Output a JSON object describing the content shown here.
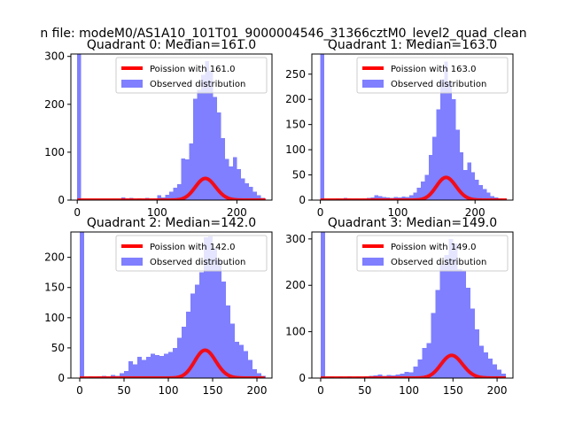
{
  "suptitle": "n file: modeM0/AS1A10_101T01_9000004546_31366cztM0_level2_quad_clean",
  "colors": {
    "hist": "#7f7fff",
    "curve": "#ff0000",
    "axes": "#000000"
  },
  "chart_data": [
    {
      "type": "bar",
      "title": "Quadrant 0: Median=161.0",
      "xlim": [
        -8,
        244
      ],
      "ylim": [
        0,
        305
      ],
      "xticks": [
        0,
        100,
        200
      ],
      "yticks": [
        0,
        100,
        200,
        300
      ],
      "bin_width": 5,
      "bins": [
        {
          "x": 0,
          "count": 305
        },
        {
          "x": 55,
          "count": 6
        },
        {
          "x": 60,
          "count": 3
        },
        {
          "x": 65,
          "count": 5
        },
        {
          "x": 70,
          "count": 2
        },
        {
          "x": 75,
          "count": 4
        },
        {
          "x": 80,
          "count": 2
        },
        {
          "x": 85,
          "count": 5
        },
        {
          "x": 90,
          "count": 2
        },
        {
          "x": 95,
          "count": 3
        },
        {
          "x": 100,
          "count": 10
        },
        {
          "x": 105,
          "count": 6
        },
        {
          "x": 110,
          "count": 11
        },
        {
          "x": 115,
          "count": 18
        },
        {
          "x": 120,
          "count": 26
        },
        {
          "x": 125,
          "count": 33
        },
        {
          "x": 130,
          "count": 87
        },
        {
          "x": 135,
          "count": 85
        },
        {
          "x": 140,
          "count": 118
        },
        {
          "x": 145,
          "count": 212
        },
        {
          "x": 150,
          "count": 230
        },
        {
          "x": 155,
          "count": 262
        },
        {
          "x": 160,
          "count": 290
        },
        {
          "x": 165,
          "count": 270
        },
        {
          "x": 170,
          "count": 215
        },
        {
          "x": 175,
          "count": 183
        },
        {
          "x": 180,
          "count": 129
        },
        {
          "x": 185,
          "count": 86
        },
        {
          "x": 190,
          "count": 70
        },
        {
          "x": 195,
          "count": 90
        },
        {
          "x": 200,
          "count": 65
        },
        {
          "x": 205,
          "count": 45
        },
        {
          "x": 210,
          "count": 35
        },
        {
          "x": 215,
          "count": 28
        },
        {
          "x": 220,
          "count": 18
        },
        {
          "x": 225,
          "count": 10
        },
        {
          "x": 230,
          "count": 5
        }
      ],
      "poisson": {
        "mean": 161.0,
        "scale": 1440
      },
      "legend": {
        "curve": "Poission with 161.0",
        "hist": "Observed distribution"
      }
    },
    {
      "type": "bar",
      "title": "Quadrant 1: Median=163.0",
      "xlim": [
        -11,
        249
      ],
      "ylim": [
        0,
        290
      ],
      "xticks": [
        0,
        100,
        200
      ],
      "yticks": [
        0,
        50,
        100,
        150,
        200,
        250
      ],
      "bin_width": 5,
      "bins": [
        {
          "x": 0,
          "count": 290
        },
        {
          "x": 20,
          "count": 3
        },
        {
          "x": 25,
          "count": 2
        },
        {
          "x": 30,
          "count": 4
        },
        {
          "x": 35,
          "count": 3
        },
        {
          "x": 40,
          "count": 2
        },
        {
          "x": 45,
          "count": 3
        },
        {
          "x": 50,
          "count": 2
        },
        {
          "x": 55,
          "count": 3
        },
        {
          "x": 60,
          "count": 4
        },
        {
          "x": 65,
          "count": 5
        },
        {
          "x": 70,
          "count": 10
        },
        {
          "x": 75,
          "count": 8
        },
        {
          "x": 80,
          "count": 6
        },
        {
          "x": 85,
          "count": 5
        },
        {
          "x": 90,
          "count": 4
        },
        {
          "x": 95,
          "count": 6
        },
        {
          "x": 100,
          "count": 5
        },
        {
          "x": 105,
          "count": 7
        },
        {
          "x": 110,
          "count": 6
        },
        {
          "x": 115,
          "count": 10
        },
        {
          "x": 120,
          "count": 15
        },
        {
          "x": 125,
          "count": 25
        },
        {
          "x": 130,
          "count": 37
        },
        {
          "x": 135,
          "count": 50
        },
        {
          "x": 140,
          "count": 90
        },
        {
          "x": 145,
          "count": 126
        },
        {
          "x": 150,
          "count": 180
        },
        {
          "x": 155,
          "count": 240
        },
        {
          "x": 160,
          "count": 275
        },
        {
          "x": 165,
          "count": 235
        },
        {
          "x": 170,
          "count": 200
        },
        {
          "x": 175,
          "count": 140
        },
        {
          "x": 180,
          "count": 95
        },
        {
          "x": 185,
          "count": 60
        },
        {
          "x": 190,
          "count": 75
        },
        {
          "x": 195,
          "count": 55
        },
        {
          "x": 200,
          "count": 40
        },
        {
          "x": 205,
          "count": 30
        },
        {
          "x": 210,
          "count": 22
        },
        {
          "x": 215,
          "count": 15
        },
        {
          "x": 220,
          "count": 8
        },
        {
          "x": 225,
          "count": 5
        },
        {
          "x": 230,
          "count": 3
        }
      ],
      "poisson": {
        "mean": 163.0,
        "scale": 1440
      },
      "legend": {
        "curve": "Poission with 163.0",
        "hist": "Observed distribution"
      }
    },
    {
      "type": "bar",
      "title": "Quadrant 2: Median=142.0",
      "xlim": [
        -10,
        217
      ],
      "ylim": [
        0,
        242
      ],
      "xticks": [
        0,
        50,
        100,
        150,
        200
      ],
      "yticks": [
        0,
        50,
        100,
        150,
        200
      ],
      "bin_width": 5,
      "bins": [
        {
          "x": 0,
          "count": 242
        },
        {
          "x": 10,
          "count": 3
        },
        {
          "x": 15,
          "count": 2
        },
        {
          "x": 20,
          "count": 3
        },
        {
          "x": 25,
          "count": 4
        },
        {
          "x": 30,
          "count": 3
        },
        {
          "x": 35,
          "count": 5
        },
        {
          "x": 40,
          "count": 4
        },
        {
          "x": 45,
          "count": 8
        },
        {
          "x": 50,
          "count": 12
        },
        {
          "x": 55,
          "count": 28
        },
        {
          "x": 60,
          "count": 23
        },
        {
          "x": 65,
          "count": 35
        },
        {
          "x": 70,
          "count": 30
        },
        {
          "x": 75,
          "count": 35
        },
        {
          "x": 80,
          "count": 40
        },
        {
          "x": 85,
          "count": 38
        },
        {
          "x": 90,
          "count": 37
        },
        {
          "x": 95,
          "count": 40
        },
        {
          "x": 100,
          "count": 43
        },
        {
          "x": 105,
          "count": 50
        },
        {
          "x": 110,
          "count": 67
        },
        {
          "x": 115,
          "count": 85
        },
        {
          "x": 120,
          "count": 110
        },
        {
          "x": 125,
          "count": 140
        },
        {
          "x": 130,
          "count": 155
        },
        {
          "x": 135,
          "count": 175
        },
        {
          "x": 140,
          "count": 233
        },
        {
          "x": 145,
          "count": 235
        },
        {
          "x": 150,
          "count": 215
        },
        {
          "x": 155,
          "count": 195
        },
        {
          "x": 160,
          "count": 160
        },
        {
          "x": 165,
          "count": 120
        },
        {
          "x": 170,
          "count": 90
        },
        {
          "x": 175,
          "count": 60
        },
        {
          "x": 180,
          "count": 55
        },
        {
          "x": 185,
          "count": 45
        },
        {
          "x": 190,
          "count": 30
        },
        {
          "x": 195,
          "count": 15
        },
        {
          "x": 200,
          "count": 8
        },
        {
          "x": 205,
          "count": 4
        }
      ],
      "poisson": {
        "mean": 142.0,
        "scale": 1380
      },
      "legend": {
        "curve": "Poission with 142.0",
        "hist": "Observed distribution"
      }
    },
    {
      "type": "bar",
      "title": "Quadrant 3: Median=149.0",
      "xlim": [
        -10,
        218
      ],
      "ylim": [
        0,
        315
      ],
      "xticks": [
        0,
        50,
        100,
        150,
        200
      ],
      "yticks": [
        0,
        100,
        200,
        300
      ],
      "bin_width": 5,
      "bins": [
        {
          "x": 0,
          "count": 315
        },
        {
          "x": 10,
          "count": 3
        },
        {
          "x": 20,
          "count": 3
        },
        {
          "x": 30,
          "count": 4
        },
        {
          "x": 40,
          "count": 3
        },
        {
          "x": 50,
          "count": 4
        },
        {
          "x": 55,
          "count": 5
        },
        {
          "x": 60,
          "count": 6
        },
        {
          "x": 65,
          "count": 8
        },
        {
          "x": 70,
          "count": 5
        },
        {
          "x": 75,
          "count": 7
        },
        {
          "x": 80,
          "count": 6
        },
        {
          "x": 85,
          "count": 8
        },
        {
          "x": 90,
          "count": 10
        },
        {
          "x": 95,
          "count": 13
        },
        {
          "x": 100,
          "count": 12
        },
        {
          "x": 105,
          "count": 25
        },
        {
          "x": 110,
          "count": 40
        },
        {
          "x": 115,
          "count": 65
        },
        {
          "x": 120,
          "count": 75
        },
        {
          "x": 125,
          "count": 140
        },
        {
          "x": 130,
          "count": 190
        },
        {
          "x": 135,
          "count": 245
        },
        {
          "x": 140,
          "count": 265
        },
        {
          "x": 145,
          "count": 300
        },
        {
          "x": 150,
          "count": 290
        },
        {
          "x": 155,
          "count": 235
        },
        {
          "x": 160,
          "count": 230
        },
        {
          "x": 165,
          "count": 195
        },
        {
          "x": 170,
          "count": 150
        },
        {
          "x": 175,
          "count": 105
        },
        {
          "x": 180,
          "count": 70
        },
        {
          "x": 185,
          "count": 55
        },
        {
          "x": 190,
          "count": 42
        },
        {
          "x": 195,
          "count": 30
        },
        {
          "x": 200,
          "count": 18
        },
        {
          "x": 205,
          "count": 10
        }
      ],
      "poisson": {
        "mean": 149.0,
        "scale": 1500
      },
      "legend": {
        "curve": "Poission with 149.0",
        "hist": "Observed distribution"
      }
    }
  ]
}
